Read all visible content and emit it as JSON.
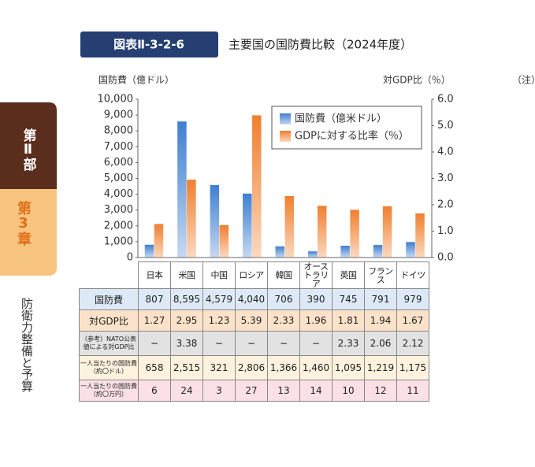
{
  "figure_label": "図表Ⅱ-3-2-6",
  "title": "主要国の国防費比較（2024年度）",
  "note": "（注）",
  "sidebar": {
    "part": "第Ⅱ部",
    "chapter": "第3章",
    "section": "防衛力整備と予算"
  },
  "chart_data": {
    "type": "bar",
    "y_label": "国防費（億ドル）",
    "y2_label": "対GDP比（％）",
    "categories": [
      "日本",
      "米国",
      "中国",
      "ロシア",
      "韓国",
      "オーストラリア",
      "英国",
      "フランス",
      "ドイツ"
    ],
    "series": [
      {
        "name": "国防費（億米ドル）",
        "color": "#3f7fd0",
        "values": [
          807,
          8595,
          4579,
          4040,
          706,
          390,
          745,
          791,
          979
        ],
        "value_labels": [
          "807",
          "8,595",
          "4,579",
          "4,040",
          "706",
          "390",
          "745",
          "791",
          "979"
        ]
      },
      {
        "name": "GDPに対する比率（％）",
        "color": "#f07f2e",
        "axis": "y2",
        "values": [
          1.27,
          2.95,
          1.23,
          5.39,
          2.33,
          1.96,
          1.81,
          1.94,
          1.67
        ]
      }
    ],
    "ylim": [
      0,
      10000
    ],
    "yticks": [
      0,
      {
        "value": 1000,
        "label": "1,000"
      },
      {
        "value": 2000,
        "label": "2,000"
      },
      {
        "value": 3000,
        "label": "3,000"
      },
      {
        "value": 4000,
        "label": "4,000"
      },
      {
        "value": 5000,
        "label": "5,000"
      },
      {
        "value": 6000,
        "label": "6,000"
      },
      {
        "value": 7000,
        "label": "7,000"
      },
      {
        "value": 8000,
        "label": "8,000"
      },
      {
        "value": 9000,
        "label": "9,000"
      },
      {
        "value": 10000,
        "label": "10,000"
      }
    ],
    "y2lim": [
      0,
      6
    ],
    "y2ticks": [
      {
        "value": 0,
        "label": "0.0"
      },
      {
        "value": 1,
        "label": "1.0"
      },
      {
        "value": 2,
        "label": "2.0"
      },
      {
        "value": 3,
        "label": "3.0"
      },
      {
        "value": 4,
        "label": "4.0"
      },
      {
        "value": 5,
        "label": "5.0"
      },
      {
        "value": 6,
        "label": "6.0"
      }
    ],
    "legend": "top-right",
    "grid": false
  },
  "table": {
    "row_labels": [
      "国防費",
      "対GDP比",
      "（参考）NATO公表値による対GDP比",
      "一人当たりの国防費（約〇ドル）",
      "一人当たりの国防費（約〇万円）"
    ],
    "rows": [
      [
        "−",
        "3.38",
        "−",
        "−",
        "−",
        "−",
        "2.33",
        "2.06",
        "2.12"
      ],
      [
        "658",
        "2,515",
        "321",
        "2,806",
        "1,366",
        "1,460",
        "1,095",
        "1,219",
        "1,175"
      ],
      [
        "6",
        "24",
        "3",
        "27",
        "13",
        "14",
        "10",
        "12",
        "11"
      ]
    ]
  }
}
